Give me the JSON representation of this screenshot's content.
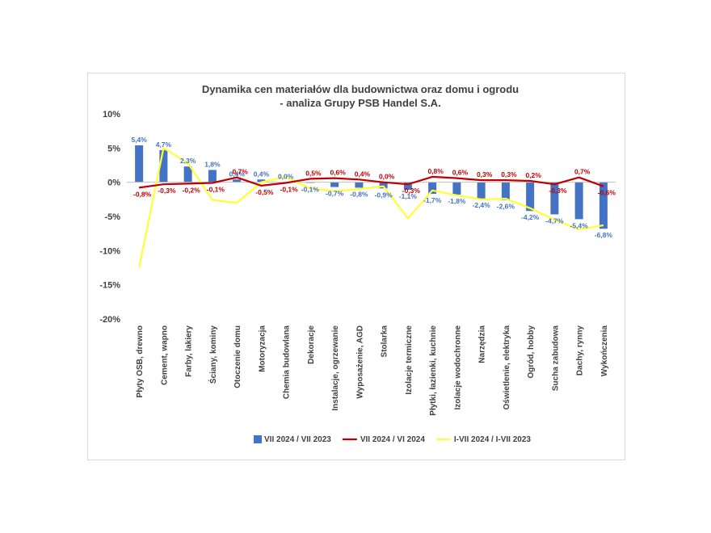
{
  "chart_data": {
    "type": "bar",
    "title_lines": [
      "Dynamika cen materiałów dla budownictwa oraz domu i ogrodu",
      "- analiza Grupy PSB Handel S.A."
    ],
    "categories": [
      "Płyty OSB, drewno",
      "Cement, wapno",
      "Farby, lakiery",
      "Ściany, kominy",
      "Otoczenie domu",
      "Motoryzacja",
      "Chemia budowlana",
      "Dekoracje",
      "Instalacje, ogrzewanie",
      "Wyposażenie, AGD",
      "Stolarka",
      "Izolacje termiczne",
      "Płytki, łazienki, kuchnie",
      "Izolacje wodochronne",
      "Narzędzia",
      "Oświetlenie, elektryka",
      "Ogród, hobby",
      "Sucha zabudowa",
      "Dachy, rynny",
      "Wykończenia"
    ],
    "yticks": [
      "10%",
      "5%",
      "0%",
      "-5%",
      "-10%",
      "-15%",
      "-20%"
    ],
    "ylim": [
      -20,
      10
    ],
    "series": [
      {
        "name": "VII 2024 / VII 2023",
        "type": "bar",
        "color": "#4472c4",
        "label_color": "#4472c4",
        "values": [
          5.4,
          4.7,
          2.3,
          1.8,
          0.4,
          0.4,
          0.0,
          -0.1,
          -0.7,
          -0.8,
          -0.9,
          -1.1,
          -1.7,
          -1.8,
          -2.4,
          -2.6,
          -4.2,
          -4.7,
          -5.4,
          -6.8
        ],
        "labels": [
          "5,4%",
          "4,7%",
          "2,3%",
          "1,8%",
          "0,4%",
          "0,4%",
          "0,0%",
          "-0,1%",
          "-0,7%",
          "-0,8%",
          "-0,9%",
          "-1,1%",
          "-1,7%",
          "-1,8%",
          "-2,4%",
          "-2,6%",
          "-4,2%",
          "-4,7%",
          "-5,4%",
          "-6,8%"
        ]
      },
      {
        "name": "VII 2024 / VI 2024",
        "type": "line",
        "color": "#c00000",
        "label_color": "#c00000",
        "values": [
          -0.8,
          -0.3,
          -0.2,
          -0.1,
          0.7,
          -0.5,
          -0.1,
          0.5,
          0.6,
          0.4,
          0.0,
          -0.3,
          0.8,
          0.6,
          0.3,
          0.3,
          0.2,
          -0.3,
          0.7,
          -0.6
        ],
        "labels": [
          "-0,8%",
          "-0,3%",
          "-0,2%",
          "-0,1%",
          "0,7%",
          "-0,5%",
          "-0,1%",
          "0,5%",
          "0,6%",
          "0,4%",
          "0,0%",
          "-0,3%",
          "0,8%",
          "0,6%",
          "0,3%",
          "0,3%",
          "0,2%",
          "-0,3%",
          "0,7%",
          "-0,6%"
        ]
      },
      {
        "name": "I-VII 2024 / I-VII 2023",
        "type": "line",
        "color": "#ffff33",
        "values": [
          -12.5,
          5.0,
          2.8,
          -2.6,
          -3.0,
          0.0,
          0.8,
          -0.9,
          -1.3,
          -1.0,
          -0.6,
          -5.3,
          -1.2,
          -1.9,
          -2.5,
          -2.4,
          -3.8,
          -5.5,
          -6.9,
          -6.3
        ]
      }
    ],
    "grid": false,
    "legend_position": "bottom"
  }
}
